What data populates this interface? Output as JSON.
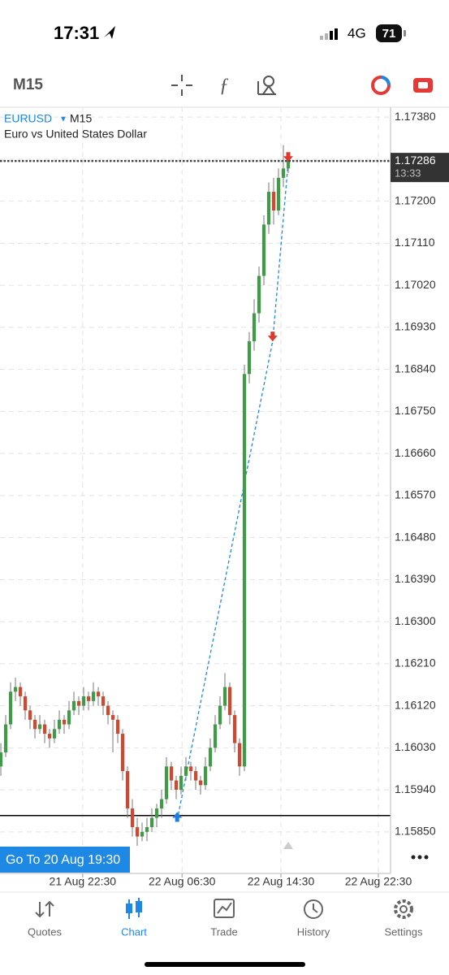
{
  "status_bar": {
    "time": "17:31",
    "network": "4G",
    "battery": "71"
  },
  "toolbar": {
    "timeframe": "M15"
  },
  "chart": {
    "type": "candlestick",
    "symbol": "EURUSD",
    "timeframe": "M15",
    "description": "Euro vs United States Dollar",
    "up_color": "#3f9b45",
    "down_color": "#d2472e",
    "ylim": [
      1.15761,
      1.17401
    ],
    "yticks": [
      {
        "value": 1.1738,
        "label": "1.17380"
      },
      {
        "value": 1.1729,
        "label": "1.17290"
      },
      {
        "value": 1.172,
        "label": "1.17200"
      },
      {
        "value": 1.1711,
        "label": "1.17110"
      },
      {
        "value": 1.1702,
        "label": "1.17020"
      },
      {
        "value": 1.1693,
        "label": "1.16930"
      },
      {
        "value": 1.1684,
        "label": "1.16840"
      },
      {
        "value": 1.1675,
        "label": "1.16750"
      },
      {
        "value": 1.1666,
        "label": "1.16660"
      },
      {
        "value": 1.1657,
        "label": "1.16570"
      },
      {
        "value": 1.1648,
        "label": "1.16480"
      },
      {
        "value": 1.1639,
        "label": "1.16390"
      },
      {
        "value": 1.163,
        "label": "1.16300"
      },
      {
        "value": 1.1621,
        "label": "1.16210"
      },
      {
        "value": 1.1612,
        "label": "1.16120"
      },
      {
        "value": 1.1603,
        "label": "1.16030"
      },
      {
        "value": 1.1594,
        "label": "1.15940"
      },
      {
        "value": 1.1585,
        "label": "1.15850"
      }
    ],
    "xlim": [
      -0.17,
      80
    ],
    "xticks": [
      {
        "value": 16.8,
        "label": "21 Aug 22:30"
      },
      {
        "value": 37.2,
        "label": "22 Aug 06:30"
      },
      {
        "value": 57.5,
        "label": "22 Aug 14:30"
      },
      {
        "value": 77.5,
        "label": "22 Aug 22:30"
      }
    ],
    "current_price": 1.17286,
    "countdown": "13:33",
    "level": 1.15885,
    "deals": [
      {
        "x": 36.2,
        "price": 1.15875,
        "color": "#1f7fe0"
      },
      {
        "x": 55.8,
        "price": 1.169,
        "color": "#e0392b"
      },
      {
        "x": 59,
        "price": 1.17284,
        "color": "#e0392b"
      }
    ],
    "candles": [
      [
        1.1599,
        1.1604,
        1.1597,
        1.1602
      ],
      [
        1.1602,
        1.161,
        1.1601,
        1.1608
      ],
      [
        1.1608,
        1.1617,
        1.1607,
        1.1615
      ],
      [
        1.1615,
        1.1618,
        1.1613,
        1.1616
      ],
      [
        1.1616,
        1.1617,
        1.1612,
        1.1614
      ],
      [
        1.1614,
        1.1615,
        1.1609,
        1.1611
      ],
      [
        1.1611,
        1.1612,
        1.1607,
        1.1609
      ],
      [
        1.1609,
        1.161,
        1.1605,
        1.1607
      ],
      [
        1.1607,
        1.161,
        1.1606,
        1.1608
      ],
      [
        1.1608,
        1.1609,
        1.1604,
        1.1606
      ],
      [
        1.1606,
        1.1607,
        1.1603,
        1.1605
      ],
      [
        1.1605,
        1.1609,
        1.1604,
        1.1607
      ],
      [
        1.1607,
        1.1611,
        1.1606,
        1.1609
      ],
      [
        1.1609,
        1.161,
        1.1606,
        1.1608
      ],
      [
        1.1608,
        1.1613,
        1.1607,
        1.1611
      ],
      [
        1.1611,
        1.1615,
        1.161,
        1.1613
      ],
      [
        1.1613,
        1.1614,
        1.161,
        1.1612
      ],
      [
        1.1612,
        1.1616,
        1.1611,
        1.1614
      ],
      [
        1.1614,
        1.1615,
        1.1611,
        1.1613
      ],
      [
        1.1613,
        1.1617,
        1.1612,
        1.1615
      ],
      [
        1.1615,
        1.1616,
        1.1612,
        1.1614
      ],
      [
        1.1614,
        1.1615,
        1.161,
        1.1612
      ],
      [
        1.1612,
        1.1613,
        1.1608,
        1.161
      ],
      [
        1.161,
        1.1611,
        1.1602,
        1.1609
      ],
      [
        1.1609,
        1.161,
        1.1604,
        1.1606
      ],
      [
        1.1606,
        1.1607,
        1.1596,
        1.1598
      ],
      [
        1.1598,
        1.1599,
        1.1588,
        1.159
      ],
      [
        1.159,
        1.1592,
        1.1584,
        1.1586
      ],
      [
        1.1586,
        1.1588,
        1.1582,
        1.1584
      ],
      [
        1.1584,
        1.1587,
        1.1583,
        1.1585
      ],
      [
        1.1585,
        1.1588,
        1.1583,
        1.1586
      ],
      [
        1.1586,
        1.159,
        1.1585,
        1.1588
      ],
      [
        1.1588,
        1.1591,
        1.1586,
        1.159
      ],
      [
        1.159,
        1.1594,
        1.1588,
        1.1592
      ],
      [
        1.1592,
        1.1601,
        1.1591,
        1.1599
      ],
      [
        1.1599,
        1.16,
        1.1594,
        1.1596
      ],
      [
        1.1596,
        1.1597,
        1.1592,
        1.1594
      ],
      [
        1.1594,
        1.1599,
        1.1593,
        1.1597
      ],
      [
        1.1597,
        1.1601,
        1.1596,
        1.1599
      ],
      [
        1.1599,
        1.16,
        1.1596,
        1.1598
      ],
      [
        1.1598,
        1.1599,
        1.1594,
        1.1596
      ],
      [
        1.1596,
        1.1597,
        1.1593,
        1.1595
      ],
      [
        1.1595,
        1.1601,
        1.1594,
        1.1599
      ],
      [
        1.1599,
        1.1605,
        1.1598,
        1.1603
      ],
      [
        1.1603,
        1.161,
        1.1602,
        1.1608
      ],
      [
        1.1608,
        1.1614,
        1.1607,
        1.1612
      ],
      [
        1.1612,
        1.1619,
        1.1611,
        1.1616
      ],
      [
        1.1616,
        1.1617,
        1.1608,
        1.161
      ],
      [
        1.161,
        1.1611,
        1.1602,
        1.1604
      ],
      [
        1.1604,
        1.1605,
        1.1597,
        1.1599
      ],
      [
        1.1599,
        1.1685,
        1.1598,
        1.1683
      ],
      [
        1.1683,
        1.1692,
        1.1681,
        1.169
      ],
      [
        1.169,
        1.1699,
        1.1688,
        1.1696
      ],
      [
        1.1696,
        1.1706,
        1.1694,
        1.1704
      ],
      [
        1.1704,
        1.1717,
        1.1702,
        1.1715
      ],
      [
        1.1715,
        1.1724,
        1.1713,
        1.1722
      ],
      [
        1.1722,
        1.1725,
        1.1715,
        1.1718
      ],
      [
        1.1718,
        1.1727,
        1.1717,
        1.1725
      ],
      [
        1.1725,
        1.1732,
        1.1723,
        1.1727
      ],
      [
        1.1727,
        1.173,
        1.1726,
        1.17286
      ]
    ]
  },
  "goto_button": "Go To 20 Aug 19:30",
  "tabs": [
    "Quotes",
    "Chart",
    "Trade",
    "History",
    "Settings"
  ]
}
